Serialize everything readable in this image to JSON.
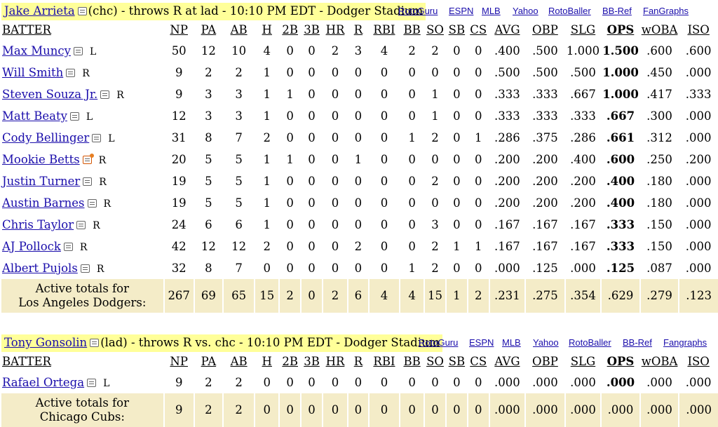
{
  "links": [
    "RotoGuru",
    "ESPN",
    "MLB",
    "Yahoo",
    "RotoBaller",
    "BB-Ref",
    "FanGraphs"
  ],
  "links2": [
    "RotoGuru",
    "ESPN",
    "MLB",
    "Yahoo",
    "RotoBaller",
    "BB-Ref",
    "Fangraphs"
  ],
  "columns": [
    "BATTER",
    "NP",
    "PA",
    "AB",
    "H",
    "2B",
    "3B",
    "HR",
    "R",
    "RBI",
    "BB",
    "SO",
    "SB",
    "CS",
    "AVG",
    "OBP",
    "SLG",
    "OPS",
    "wOBA",
    "ISO"
  ],
  "section1": {
    "pitcher": "Jake Arrieta",
    "info": "(chc) - throws R at lad - 10:10 PM EDT - Dodger Stadium",
    "rows": [
      {
        "name": "Max Muncy",
        "hand": "L",
        "stats": [
          "50",
          "12",
          "10",
          "4",
          "0",
          "0",
          "2",
          "3",
          "4",
          "2",
          "2",
          "0",
          "0",
          ".400",
          ".500",
          "1.000",
          "1.500",
          ".600",
          ".600"
        ]
      },
      {
        "name": "Will Smith",
        "hand": "R",
        "stats": [
          "9",
          "2",
          "2",
          "1",
          "0",
          "0",
          "0",
          "0",
          "0",
          "0",
          "0",
          "0",
          "0",
          ".500",
          ".500",
          ".500",
          "1.000",
          ".450",
          ".000"
        ]
      },
      {
        "name": "Steven Souza Jr.",
        "hand": "R",
        "stats": [
          "9",
          "3",
          "3",
          "1",
          "1",
          "0",
          "0",
          "0",
          "0",
          "0",
          "1",
          "0",
          "0",
          ".333",
          ".333",
          ".667",
          "1.000",
          ".417",
          ".333"
        ]
      },
      {
        "name": "Matt Beaty",
        "hand": "L",
        "stats": [
          "12",
          "3",
          "3",
          "1",
          "0",
          "0",
          "0",
          "0",
          "0",
          "0",
          "1",
          "0",
          "0",
          ".333",
          ".333",
          ".333",
          ".667",
          ".300",
          ".000"
        ]
      },
      {
        "name": "Cody Bellinger",
        "hand": "L",
        "stats": [
          "31",
          "8",
          "7",
          "2",
          "0",
          "0",
          "0",
          "0",
          "0",
          "1",
          "2",
          "0",
          "1",
          ".286",
          ".375",
          ".286",
          ".661",
          ".312",
          ".000"
        ]
      },
      {
        "name": "Mookie Betts",
        "hand": "R",
        "stats": [
          "20",
          "5",
          "5",
          "1",
          "1",
          "0",
          "0",
          "1",
          "0",
          "0",
          "0",
          "0",
          "0",
          ".200",
          ".200",
          ".400",
          ".600",
          ".250",
          ".200"
        ]
      },
      {
        "name": "Justin Turner",
        "hand": "R",
        "stats": [
          "19",
          "5",
          "5",
          "1",
          "0",
          "0",
          "0",
          "0",
          "0",
          "0",
          "2",
          "0",
          "0",
          ".200",
          ".200",
          ".200",
          ".400",
          ".180",
          ".000"
        ]
      },
      {
        "name": "Austin Barnes",
        "hand": "R",
        "stats": [
          "19",
          "5",
          "5",
          "1",
          "0",
          "0",
          "0",
          "0",
          "0",
          "0",
          "0",
          "0",
          "0",
          ".200",
          ".200",
          ".200",
          ".400",
          ".180",
          ".000"
        ]
      },
      {
        "name": "Chris Taylor",
        "hand": "R",
        "stats": [
          "24",
          "6",
          "6",
          "1",
          "0",
          "0",
          "0",
          "0",
          "0",
          "0",
          "3",
          "0",
          "0",
          ".167",
          ".167",
          ".167",
          ".333",
          ".150",
          ".000"
        ]
      },
      {
        "name": "AJ Pollock",
        "hand": "R",
        "stats": [
          "42",
          "12",
          "12",
          "2",
          "0",
          "0",
          "0",
          "2",
          "0",
          "0",
          "2",
          "1",
          "1",
          ".167",
          ".167",
          ".167",
          ".333",
          ".150",
          ".000"
        ]
      },
      {
        "name": "Albert Pujols",
        "hand": "R",
        "stats": [
          "32",
          "8",
          "7",
          "0",
          "0",
          "0",
          "0",
          "0",
          "0",
          "1",
          "2",
          "0",
          "0",
          ".000",
          ".125",
          ".000",
          ".125",
          ".087",
          ".000"
        ]
      }
    ],
    "totals_label_1": "Active totals for",
    "totals_label_2": "Los Angeles Dodgers:",
    "totals": [
      "267",
      "69",
      "65",
      "15",
      "2",
      "0",
      "2",
      "6",
      "4",
      "4",
      "15",
      "1",
      "2",
      ".231",
      ".275",
      ".354",
      ".629",
      ".279",
      ".123"
    ]
  },
  "section2": {
    "pitcher": "Tony Gonsolin",
    "info": "(lad) - throws R vs. chc - 10:10 PM EDT - Dodger Stadium",
    "rows": [
      {
        "name": "Rafael Ortega",
        "hand": "L",
        "stats": [
          "9",
          "2",
          "2",
          "0",
          "0",
          "0",
          "0",
          "0",
          "0",
          "0",
          "0",
          "0",
          "0",
          ".000",
          ".000",
          ".000",
          ".000",
          ".000",
          ".000"
        ]
      }
    ],
    "totals_label_1": "Active totals for",
    "totals_label_2": "Chicago Cubs:",
    "totals": [
      "9",
      "2",
      "2",
      "0",
      "0",
      "0",
      "0",
      "0",
      "0",
      "0",
      "0",
      "0",
      "0",
      ".000",
      ".000",
      ".000",
      ".000",
      ".000",
      ".000"
    ]
  }
}
